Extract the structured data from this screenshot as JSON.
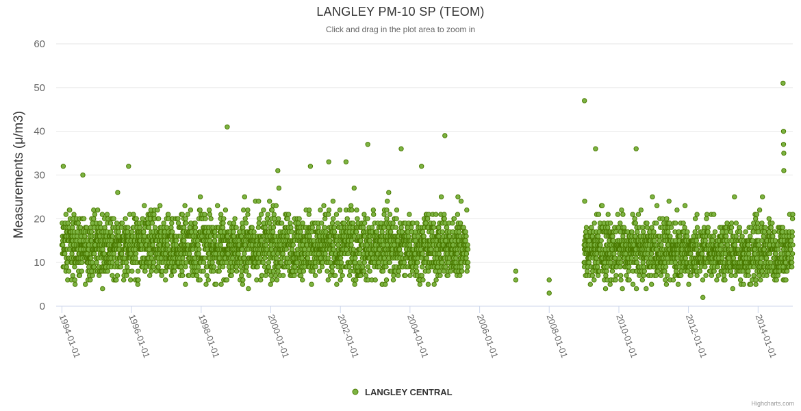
{
  "chart_data": {
    "type": "scatter",
    "title": "LANGLEY PM-10 SP (TEOM)",
    "subtitle": "Click and drag in the plot area to zoom in",
    "ylabel": "Measurements (μ/m3)",
    "xlabel": "",
    "ylim": [
      0,
      60
    ],
    "yticks": [
      0,
      10,
      20,
      30,
      40,
      50,
      60
    ],
    "xlim": [
      "1993-11-01",
      "2014-12-31"
    ],
    "xticks": [
      "1994-01-01",
      "1996-01-01",
      "1998-01-01",
      "2000-01-01",
      "2002-01-01",
      "2004-01-01",
      "2006-01-01",
      "2008-01-01",
      "2010-01-01",
      "2012-01-01",
      "2014-01-01"
    ],
    "grid": true,
    "legend": "bottom-center",
    "series": [
      {
        "name": "LANGLEY CENTRAL",
        "color": "#7cb342",
        "marker_edge": "#4a7a00",
        "density_segments": [
          {
            "start": "1994-01-01",
            "end": "2005-08-31",
            "typical_min": 3,
            "typical_max": 22,
            "center": 12
          },
          {
            "start": "2009-01-01",
            "end": "2014-12-31",
            "typical_min": 3,
            "typical_max": 20,
            "center": 10
          }
        ],
        "highlighted_points": [
          {
            "x": "1994-01-15",
            "y": 32
          },
          {
            "x": "1995-12-01",
            "y": 32
          },
          {
            "x": "1998-10-01",
            "y": 41
          },
          {
            "x": "2000-03-15",
            "y": 31
          },
          {
            "x": "2001-02-20",
            "y": 32
          },
          {
            "x": "2001-09-01",
            "y": 33
          },
          {
            "x": "2002-03-01",
            "y": 33
          },
          {
            "x": "2002-10-15",
            "y": 37
          },
          {
            "x": "2003-10-01",
            "y": 36
          },
          {
            "x": "2004-05-01",
            "y": 32
          },
          {
            "x": "2005-01-01",
            "y": 39
          },
          {
            "x": "2007-01-15",
            "y": 8
          },
          {
            "x": "2007-01-15",
            "y": 6
          },
          {
            "x": "2008-01-01",
            "y": 6
          },
          {
            "x": "2008-01-01",
            "y": 3
          },
          {
            "x": "2009-01-05",
            "y": 47
          },
          {
            "x": "2009-05-01",
            "y": 36
          },
          {
            "x": "2010-07-01",
            "y": 36
          },
          {
            "x": "2012-06-01",
            "y": 2
          },
          {
            "x": "2014-09-20",
            "y": 51
          },
          {
            "x": "2014-09-25",
            "y": 40
          },
          {
            "x": "2014-09-25",
            "y": 37
          },
          {
            "x": "2014-09-28",
            "y": 35
          },
          {
            "x": "2014-09-28",
            "y": 31
          }
        ]
      }
    ]
  },
  "credits": "Highcharts.com"
}
